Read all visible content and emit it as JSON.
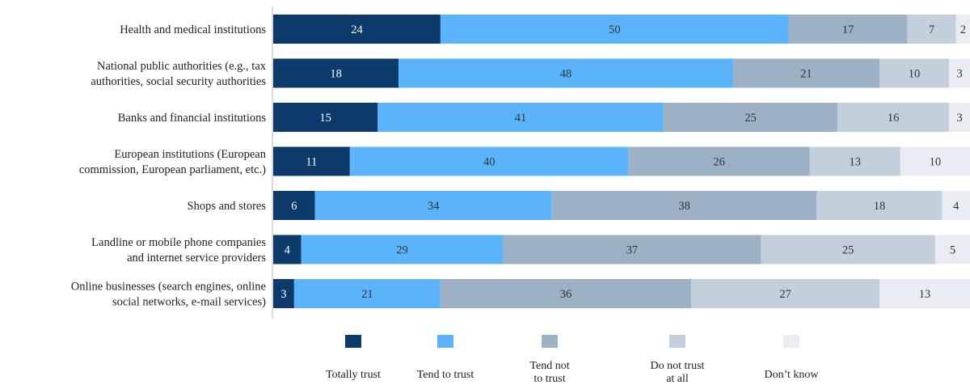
{
  "chart_data": {
    "type": "bar",
    "orientation": "horizontal",
    "stacked": true,
    "categories": [
      [
        "Health and medical institutions"
      ],
      [
        "National public authorities (e.g., tax",
        "authorities, social security authorities"
      ],
      [
        "Banks and financial institutions"
      ],
      [
        "European institutions (European",
        "commission, European parliament, etc.)"
      ],
      [
        "Shops and stores"
      ],
      [
        "Landline or mobile phone companies",
        "and internet service providers"
      ],
      [
        "Online businesses (search engines, online",
        "social networks, e-mail services)"
      ]
    ],
    "series": [
      {
        "name": [
          "Totally trust"
        ],
        "color": "#0b3a6b",
        "label_color": "#ffffff",
        "values": [
          24,
          18,
          15,
          11,
          6,
          4,
          3
        ]
      },
      {
        "name": [
          "Tend to trust"
        ],
        "color": "#5bb4fb",
        "label_color": "#333333",
        "values": [
          50,
          48,
          41,
          40,
          34,
          29,
          21
        ]
      },
      {
        "name": [
          "Tend not",
          "to trust"
        ],
        "color": "#9cb1c4",
        "label_color": "#333333",
        "values": [
          17,
          21,
          25,
          26,
          38,
          37,
          36
        ]
      },
      {
        "name": [
          "Do not trust",
          "at all"
        ],
        "color": "#c3cfdb",
        "label_color": "#333333",
        "values": [
          7,
          10,
          16,
          13,
          18,
          25,
          27
        ]
      },
      {
        "name": [
          "Don’t know"
        ],
        "color": "#e9ecf2",
        "label_color": "#333333",
        "values": [
          2,
          3,
          3,
          10,
          4,
          5,
          13
        ]
      }
    ],
    "xlim": [
      0,
      100
    ],
    "grid": false,
    "legend_position": "bottom"
  }
}
